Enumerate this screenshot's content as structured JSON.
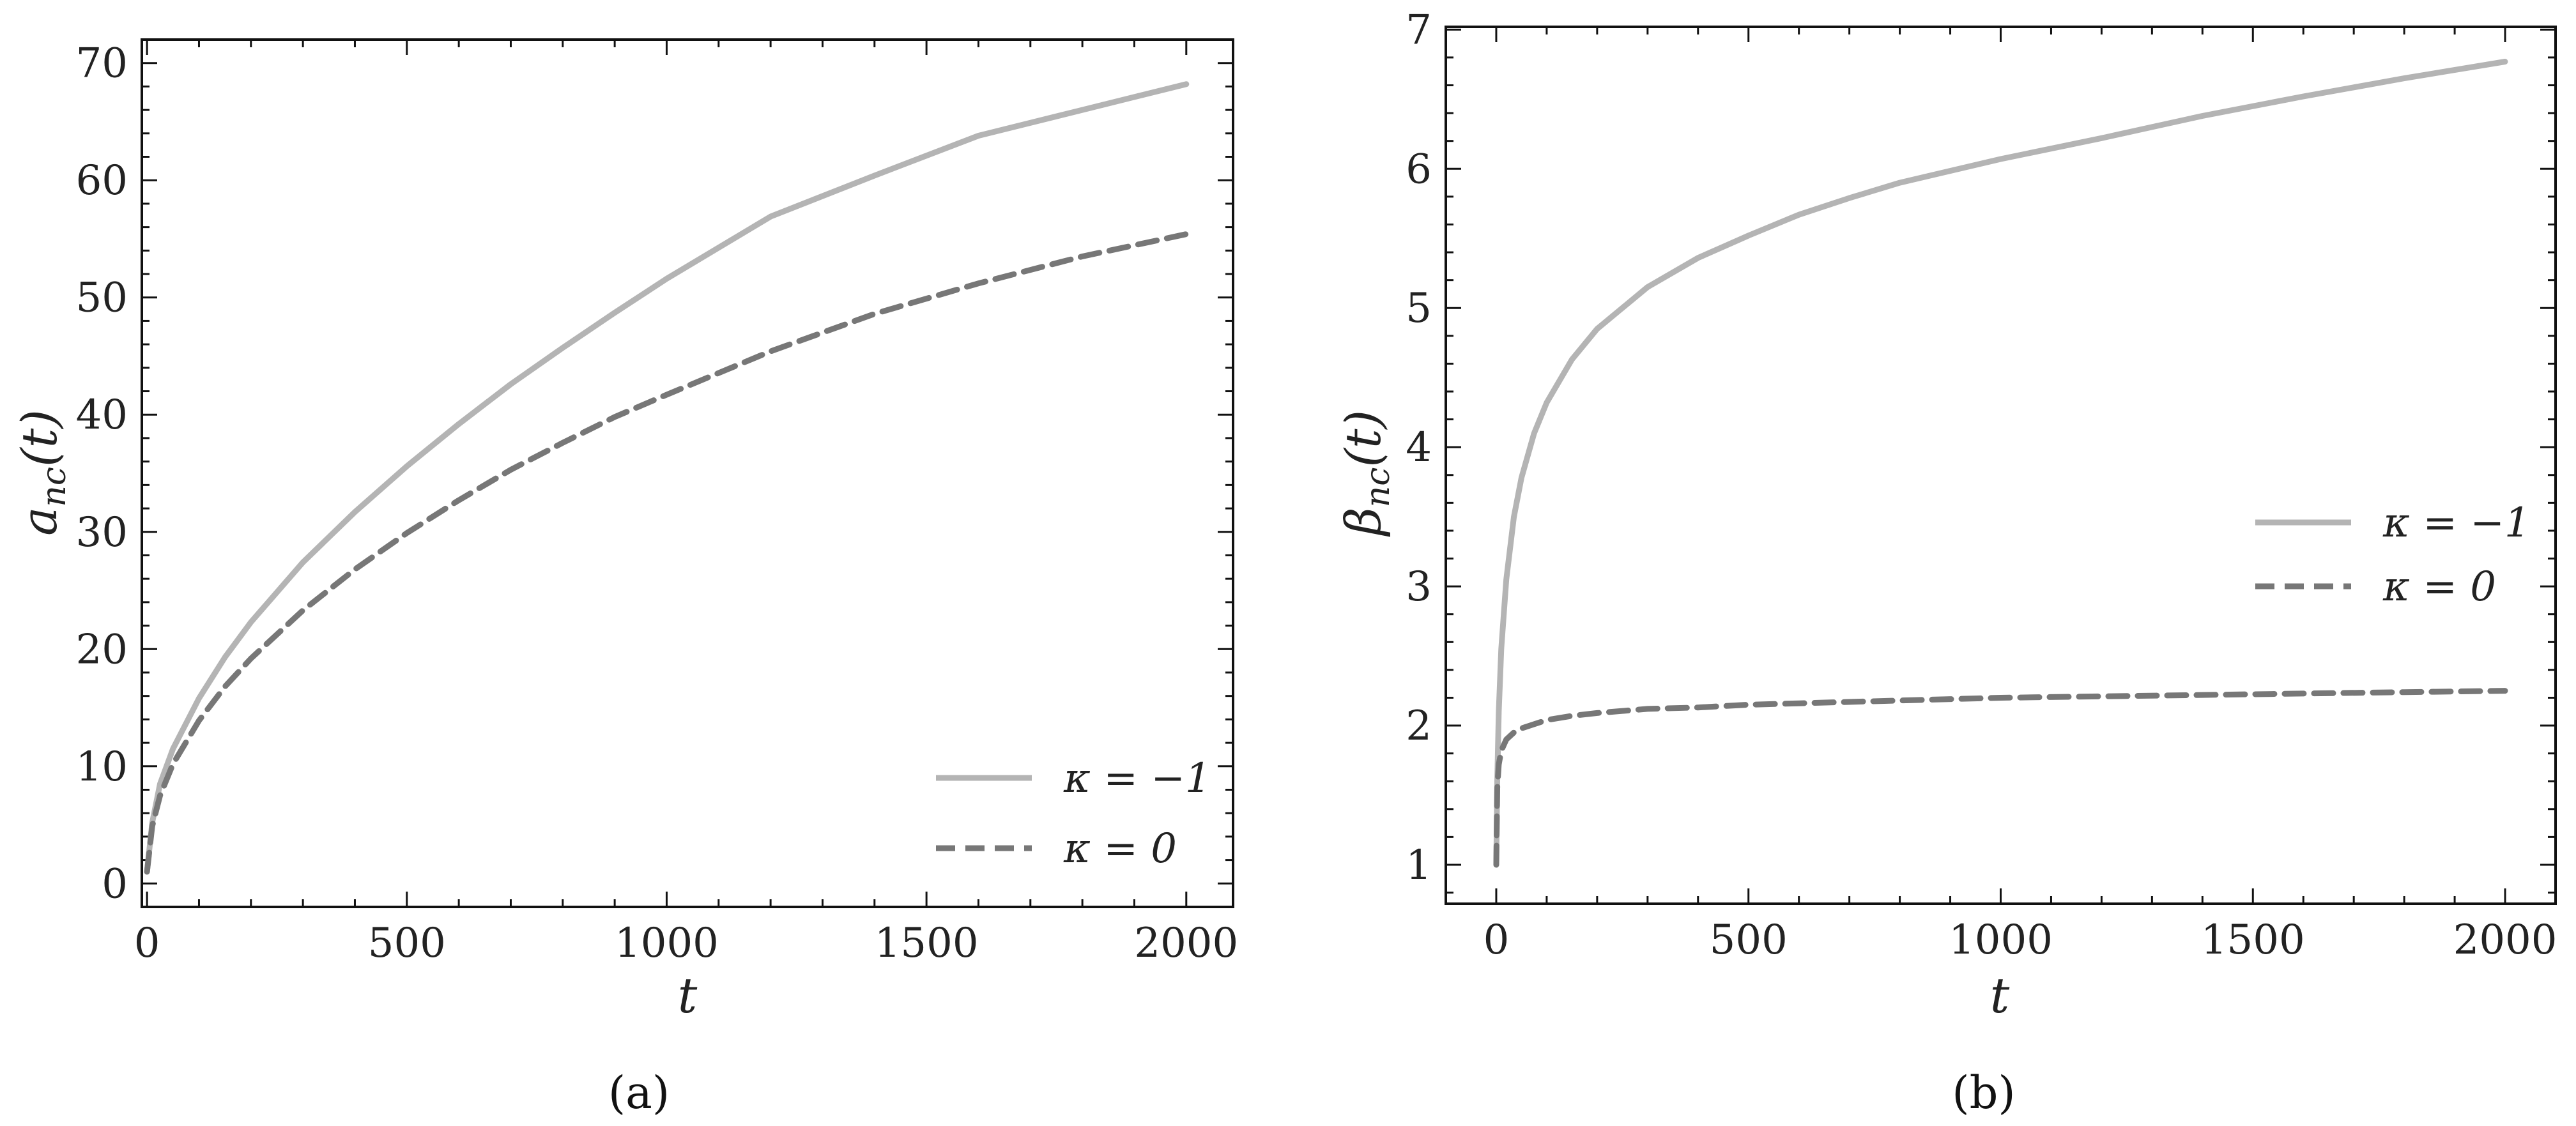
{
  "chart_data": [
    {
      "type": "line",
      "panel_label": "(a)",
      "xlabel": "t",
      "ylabel_base": "a",
      "ylabel_sub": "nc",
      "ylabel_arg": "(t)",
      "xlim": [
        -10,
        2090
      ],
      "ylim": [
        -2,
        72
      ],
      "xticks": [
        0,
        500,
        1000,
        1500,
        2000
      ],
      "yticks": [
        0,
        10,
        20,
        30,
        40,
        50,
        60,
        70
      ],
      "legend_position": "lower-right",
      "series": [
        {
          "name": "κ = −1",
          "color": "#b4b4b4",
          "dash": "solid",
          "x": [
            0,
            10,
            25,
            50,
            100,
            150,
            200,
            300,
            400,
            500,
            600,
            700,
            800,
            900,
            1000,
            1200,
            1400,
            1600,
            1800,
            2000
          ],
          "y": [
            1,
            5.2,
            8.5,
            11.5,
            15.8,
            19.3,
            22.3,
            27.4,
            31.7,
            35.6,
            39.2,
            42.6,
            45.7,
            48.7,
            51.6,
            56.9,
            60.4,
            63.8,
            66.0,
            68.2
          ]
        },
        {
          "name": "κ = 0",
          "color": "#777777",
          "dash": "dashed",
          "x": [
            0,
            10,
            25,
            50,
            100,
            150,
            200,
            300,
            400,
            500,
            600,
            700,
            800,
            900,
            1000,
            1200,
            1400,
            1600,
            1800,
            2000
          ],
          "y": [
            1,
            4.9,
            7.5,
            10.2,
            13.9,
            16.8,
            19.2,
            23.3,
            26.8,
            29.9,
            32.7,
            35.3,
            37.6,
            39.8,
            41.7,
            45.4,
            48.6,
            51.2,
            53.5,
            55.4
          ]
        }
      ]
    },
    {
      "type": "line",
      "panel_label": "(b)",
      "xlabel": "t",
      "ylabel_base": "β",
      "ylabel_sub": "nc",
      "ylabel_arg": "(t)",
      "xlim": [
        -100,
        2100
      ],
      "ylim": [
        0.72,
        7.02
      ],
      "xticks": [
        0,
        500,
        1000,
        1500,
        2000
      ],
      "yticks": [
        1,
        2,
        3,
        4,
        5,
        6,
        7
      ],
      "legend_position": "center-right",
      "series": [
        {
          "name": "κ = −1",
          "color": "#b4b4b4",
          "dash": "solid",
          "x": [
            0,
            2,
            5,
            10,
            20,
            35,
            50,
            75,
            100,
            150,
            200,
            300,
            400,
            500,
            600,
            700,
            800,
            1000,
            1200,
            1400,
            1600,
            1800,
            2000
          ],
          "y": [
            1.0,
            1.6,
            2.1,
            2.55,
            3.05,
            3.5,
            3.78,
            4.1,
            4.32,
            4.63,
            4.85,
            5.15,
            5.36,
            5.52,
            5.67,
            5.79,
            5.9,
            6.07,
            6.22,
            6.38,
            6.52,
            6.65,
            6.77
          ]
        },
        {
          "name": "κ = 0",
          "color": "#777777",
          "dash": "dashed",
          "x": [
            0,
            2,
            5,
            10,
            20,
            35,
            50,
            75,
            100,
            150,
            200,
            300,
            400,
            500,
            600,
            700,
            800,
            1000,
            1200,
            1400,
            1600,
            1800,
            2000
          ],
          "y": [
            1.0,
            1.55,
            1.72,
            1.82,
            1.9,
            1.95,
            1.98,
            2.01,
            2.04,
            2.07,
            2.09,
            2.12,
            2.13,
            2.15,
            2.16,
            2.17,
            2.18,
            2.2,
            2.21,
            2.22,
            2.23,
            2.24,
            2.25
          ]
        }
      ]
    }
  ]
}
